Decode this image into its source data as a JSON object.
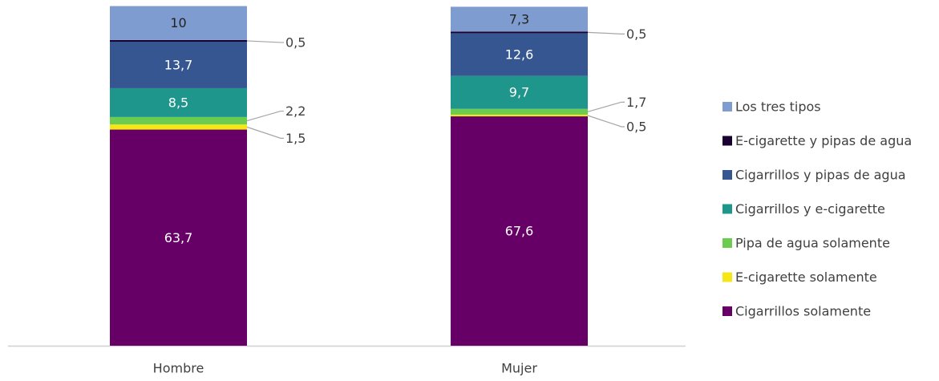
{
  "chart_data": {
    "type": "bar",
    "stacked": true,
    "horizontal": false,
    "categories": [
      "Hombre",
      "Mujer"
    ],
    "series": [
      {
        "name": "Cigarrillos solamente",
        "values": [
          63.7,
          67.6
        ],
        "color": "#660066",
        "labels": [
          "63,7",
          "67,6"
        ]
      },
      {
        "name": "E-cigarette solamente",
        "values": [
          1.5,
          0.5
        ],
        "color": "#f5e616",
        "labels": [
          "1,5",
          "0,5"
        ]
      },
      {
        "name": "Pipa de agua solamente",
        "values": [
          2.2,
          1.7
        ],
        "color": "#6ccc50",
        "labels": [
          "2,2",
          "1,7"
        ]
      },
      {
        "name": "Cigarrillos y e-cigarette",
        "values": [
          8.5,
          9.7
        ],
        "color": "#1f968b",
        "labels": [
          "8,5",
          "9,7"
        ]
      },
      {
        "name": "Cigarrillos y pipas de agua",
        "values": [
          13.7,
          12.6
        ],
        "color": "#365692",
        "labels": [
          "13,7",
          "12,6"
        ]
      },
      {
        "name": "E-cigarette y pipas de agua",
        "values": [
          0.5,
          0.5
        ],
        "color": "#1a0030",
        "labels": [
          "0,5",
          "0,5"
        ]
      },
      {
        "name": "Los tres tipos",
        "values": [
          10,
          7.3
        ],
        "color": "#7e9ccf",
        "labels": [
          "10",
          "7,3"
        ]
      }
    ],
    "ylim": [
      0,
      100
    ],
    "grid": false,
    "legend_position": "right",
    "title": "",
    "xlabel": "",
    "ylabel": ""
  }
}
